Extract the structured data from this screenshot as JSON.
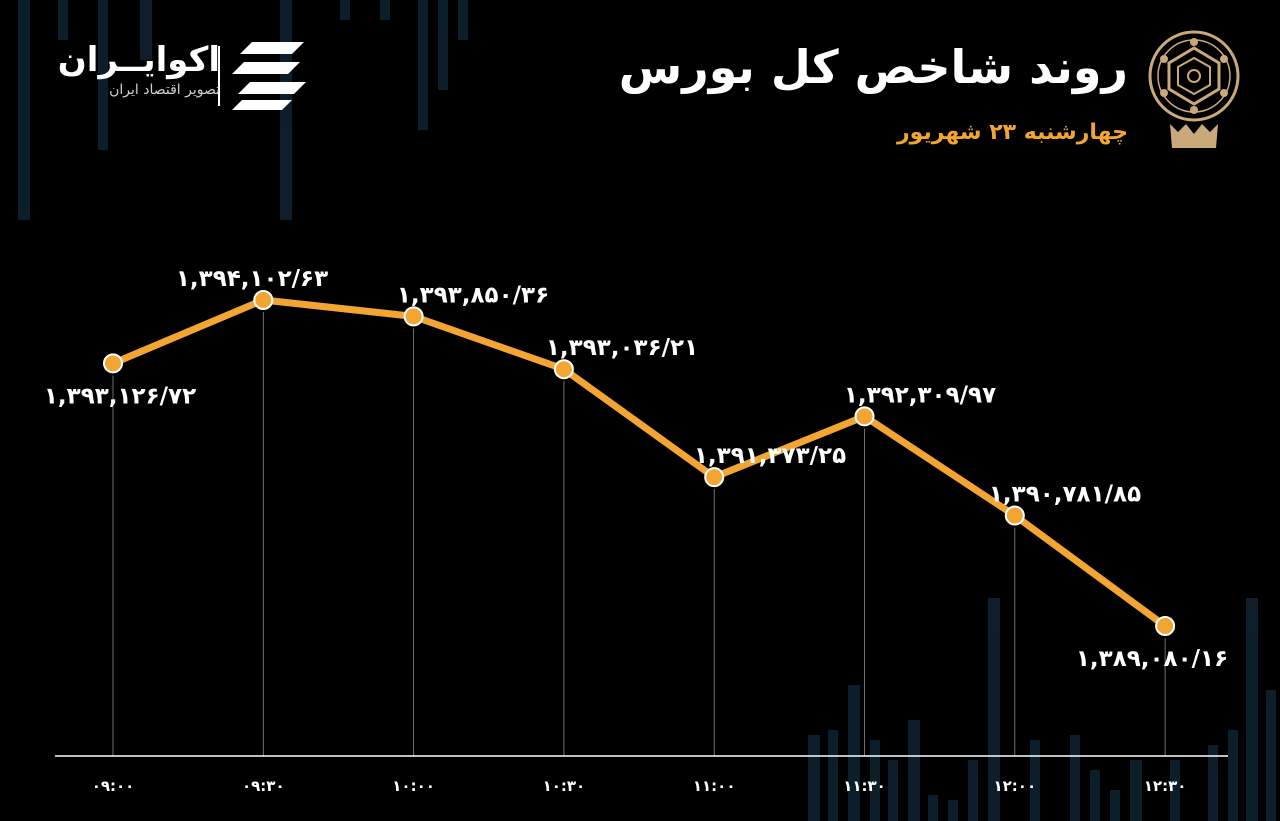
{
  "header": {
    "title": "روند شاخص کل بورس",
    "subtitle": "چهارشنبه ۲۳ شهریور"
  },
  "brand": {
    "name": "اکوایــران",
    "tagline": "تصویر اقتصاد ایران",
    "logo_icon": "ecoiran-stripes-icon",
    "emblem_icon": "tehran-stock-exchange-emblem-icon"
  },
  "colors": {
    "background": "#000000",
    "line": "#f2a533",
    "text": "#ffffff",
    "accent": "#f2a533",
    "emblem": "#c9a87a"
  },
  "chart_data": {
    "type": "line",
    "title": "روند شاخص کل بورس",
    "subtitle": "چهارشنبه ۲۳ شهریور",
    "categories": [
      "۰۹:۰۰",
      "۰۹:۳۰",
      "۱۰:۰۰",
      "۱۰:۳۰",
      "۱۱:۰۰",
      "۱۱:۳۰",
      "۱۲:۰۰",
      "۱۲:۳۰"
    ],
    "values": [
      1393126.72,
      1394102.63,
      1393850.36,
      1393036.21,
      1391373.25,
      1392309.97,
      1390781.85,
      1389080.16
    ],
    "data_labels": [
      "۱,۳۹۳,۱۲۶/۷۲",
      "۱,۳۹۴,۱۰۲/۶۳",
      "۱,۳۹۳,۸۵۰/۳۶",
      "۱,۳۹۳,۰۳۶/۲۱",
      "۱,۳۹۱,۳۷۳/۲۵",
      "۱,۳۹۲,۳۰۹/۹۷",
      "۱,۳۹۰,۷۸۱/۸۵",
      "۱,۳۸۹,۰۸۰/۱۶"
    ],
    "xlabel": "",
    "ylabel": "",
    "grid": false,
    "legend": "none"
  }
}
